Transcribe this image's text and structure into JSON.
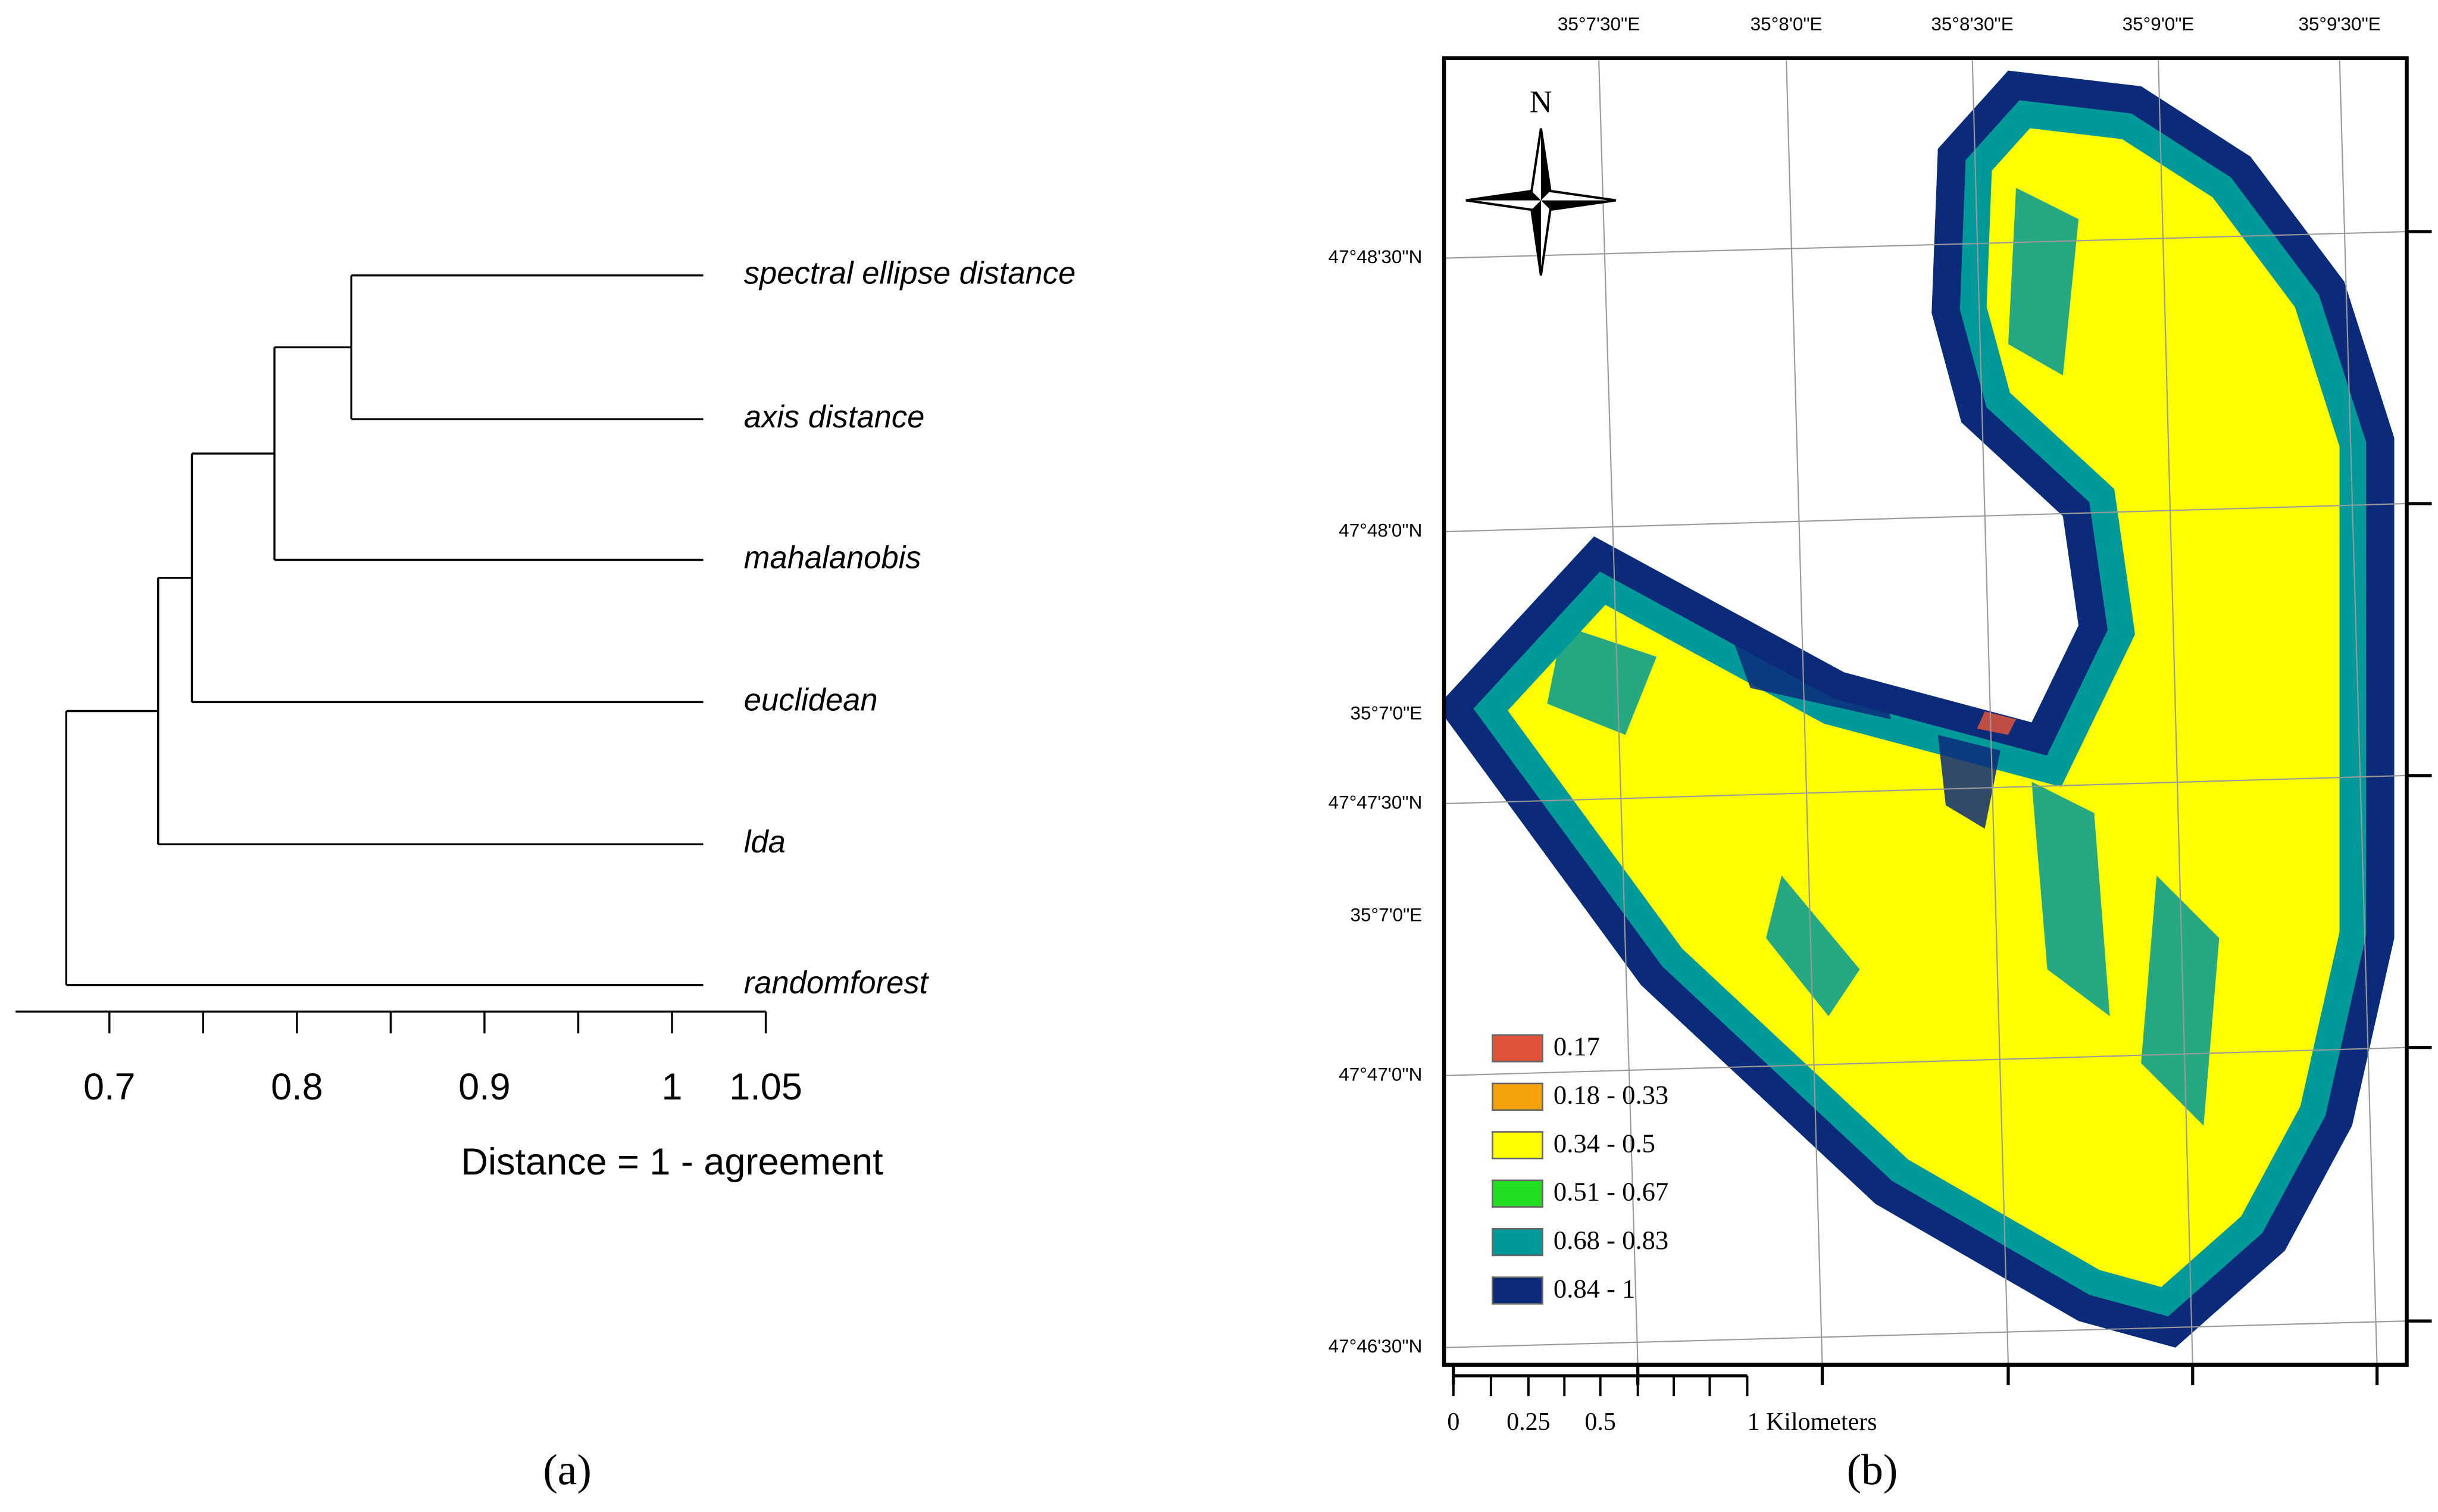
{
  "chart_data": [
    {
      "type": "dendrogram",
      "leaves": [
        "spectral ellipse distance",
        "axis distance",
        "mahalanobis",
        "euclidean",
        "lda",
        "randomforest"
      ],
      "merge_heights": [
        0.829,
        0.788,
        0.744,
        0.726,
        0.677
      ],
      "xlim": [
        0.65,
        1.05
      ],
      "xticks": [
        0.7,
        0.8,
        0.9,
        1,
        1.05
      ],
      "minor_xticks": [
        0.75,
        0.85,
        0.95
      ],
      "xlabel": "Distance = 1 - agreement",
      "panel_label": "(a)"
    },
    {
      "type": "map",
      "north_label": "N",
      "lon_labels": [
        "35°7'30\"E",
        "35°8'0\"E",
        "35°8'30\"E",
        "35°9'0\"E",
        "35°9'30\"E"
      ],
      "lat_labels": [
        "47°48'30\"N",
        "47°48'0\"N",
        "35°7'0\"E",
        "47°47'30\"N",
        "35°7'0\"E",
        "47°47'0\"N",
        "47°46'30\"N"
      ],
      "legend": [
        {
          "label": "0.17",
          "color": "#e0533a"
        },
        {
          "label": "0.18 - 0.33",
          "color": "#f5a20a"
        },
        {
          "label": "0.34 - 0.5",
          "color": "#ffff00"
        },
        {
          "label": "0.51 - 0.67",
          "color": "#22dd22"
        },
        {
          "label": "0.68 - 0.83",
          "color": "#009999"
        },
        {
          "label": "0.84 - 1",
          "color": "#0c2a7a"
        }
      ],
      "scale_labels": [
        "0",
        "0.25",
        "0.5",
        "1 Kilometers"
      ],
      "panel_label": "(b)"
    }
  ]
}
